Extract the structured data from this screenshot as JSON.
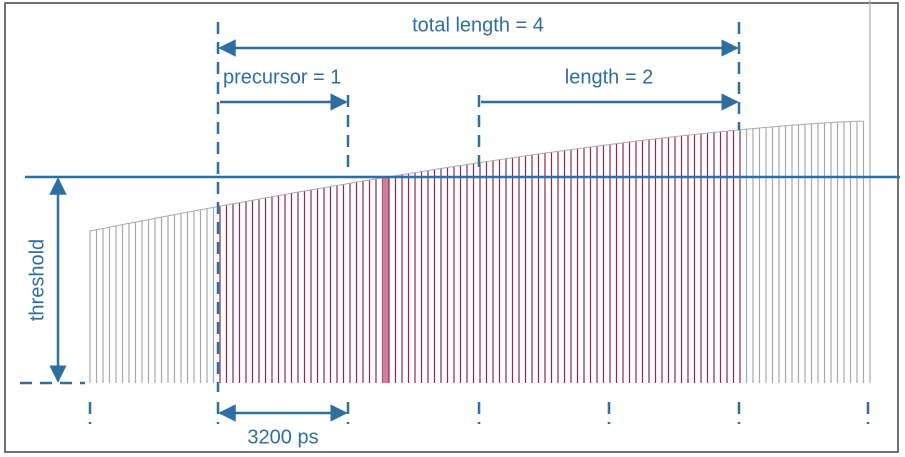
{
  "labels": {
    "total_length": "total length = 4",
    "precursor": "precursor = 1",
    "length": "length = 2",
    "threshold": "threshold",
    "spacing": "3200 ps"
  }
}
